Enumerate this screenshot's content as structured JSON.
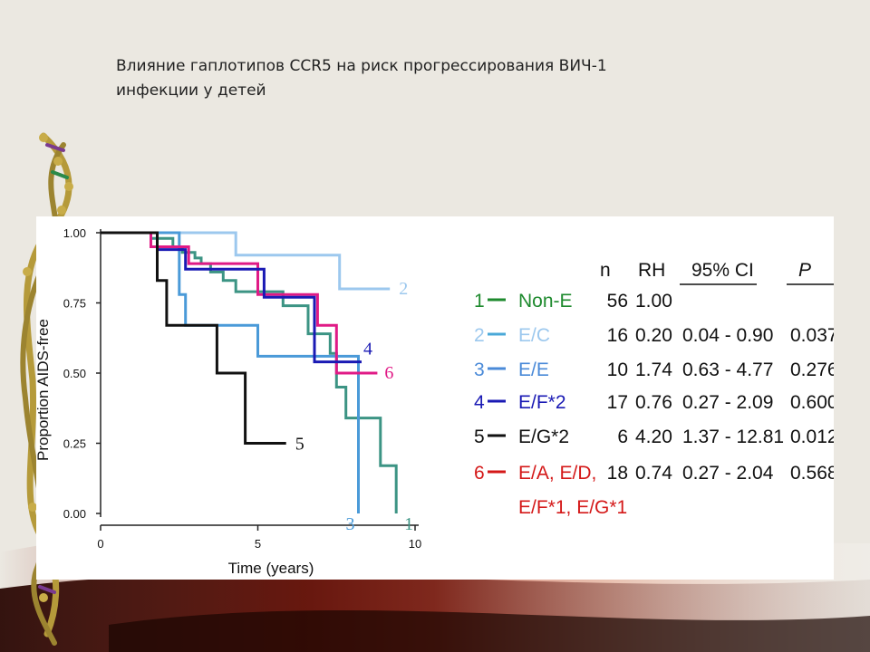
{
  "slide": {
    "title_line1": "Влияние гаплотипов CCR5 на риск прогрессирования ВИЧ-1",
    "title_line2": "инфекции у детей"
  },
  "colors": {
    "background": "#ebe8e1",
    "panel": "#ffffff",
    "series_1": "#3c9484",
    "series_2": "#9cc8ee",
    "series_3": "#4a9ad8",
    "series_4": "#1a1ab4",
    "series_5": "#111111",
    "series_6": "#e01a86",
    "green_label": "#1e8a2e",
    "red_label": "#d41818"
  },
  "chart_data": {
    "type": "line",
    "subtype": "kaplan-meier step",
    "title": "",
    "xlabel": "Time (years)",
    "ylabel": "Proportion AIDS-free",
    "xlim": [
      0,
      10
    ],
    "ylim": [
      0,
      1
    ],
    "x_ticks": [
      "0",
      "5",
      "10"
    ],
    "y_ticks": [
      "0.00",
      "0.25",
      "0.50",
      "0.75",
      "1.00"
    ],
    "grid": false,
    "series": [
      {
        "name": "1",
        "color": "#3c9484",
        "steps": [
          [
            0,
            1.0
          ],
          [
            1.6,
            1.0
          ],
          [
            1.6,
            0.98
          ],
          [
            2.3,
            0.98
          ],
          [
            2.3,
            0.95
          ],
          [
            2.6,
            0.95
          ],
          [
            2.6,
            0.93
          ],
          [
            3.0,
            0.93
          ],
          [
            3.0,
            0.91
          ],
          [
            3.2,
            0.91
          ],
          [
            3.2,
            0.89
          ],
          [
            3.5,
            0.89
          ],
          [
            3.5,
            0.86
          ],
          [
            3.9,
            0.86
          ],
          [
            3.9,
            0.83
          ],
          [
            4.3,
            0.83
          ],
          [
            4.3,
            0.8
          ],
          [
            4.3,
            0.79
          ],
          [
            5.8,
            0.79
          ],
          [
            5.8,
            0.74
          ],
          [
            6.6,
            0.74
          ],
          [
            6.6,
            0.64
          ],
          [
            7.3,
            0.64
          ],
          [
            7.3,
            0.57
          ],
          [
            7.5,
            0.57
          ],
          [
            7.5,
            0.45
          ],
          [
            7.8,
            0.45
          ],
          [
            7.8,
            0.34
          ],
          [
            8.9,
            0.34
          ],
          [
            8.9,
            0.17
          ],
          [
            9.4,
            0.17
          ],
          [
            9.4,
            0.0
          ]
        ],
        "end_label": "1"
      },
      {
        "name": "2",
        "color": "#9cc8ee",
        "steps": [
          [
            0,
            1.0
          ],
          [
            4.3,
            1.0
          ],
          [
            4.3,
            0.92
          ],
          [
            7.6,
            0.92
          ],
          [
            7.6,
            0.8
          ],
          [
            9.2,
            0.8
          ]
        ],
        "end_label": "2"
      },
      {
        "name": "3",
        "color": "#4a9ad8",
        "steps": [
          [
            0,
            1.0
          ],
          [
            2.5,
            1.0
          ],
          [
            2.5,
            0.78
          ],
          [
            2.7,
            0.78
          ],
          [
            2.7,
            0.67
          ],
          [
            3.0,
            0.67
          ],
          [
            3.0,
            0.67
          ],
          [
            5.0,
            0.67
          ],
          [
            5.0,
            0.56
          ],
          [
            7.6,
            0.56
          ],
          [
            7.6,
            0.56
          ],
          [
            8.2,
            0.56
          ],
          [
            8.2,
            0.0
          ]
        ],
        "end_label": "3"
      },
      {
        "name": "4",
        "color": "#1a1ab4",
        "steps": [
          [
            0,
            1.0
          ],
          [
            1.8,
            1.0
          ],
          [
            1.8,
            0.94
          ],
          [
            2.7,
            0.94
          ],
          [
            2.7,
            0.87
          ],
          [
            5.2,
            0.87
          ],
          [
            5.2,
            0.77
          ],
          [
            6.8,
            0.77
          ],
          [
            6.8,
            0.54
          ],
          [
            8.3,
            0.54
          ]
        ],
        "end_label": "4"
      },
      {
        "name": "5",
        "color": "#111111",
        "steps": [
          [
            0,
            1.0
          ],
          [
            1.8,
            1.0
          ],
          [
            1.8,
            0.83
          ],
          [
            2.1,
            0.83
          ],
          [
            2.1,
            0.67
          ],
          [
            3.7,
            0.67
          ],
          [
            3.7,
            0.5
          ],
          [
            4.6,
            0.5
          ],
          [
            4.6,
            0.25
          ],
          [
            5.9,
            0.25
          ]
        ],
        "end_label": "5"
      },
      {
        "name": "6",
        "color": "#e01a86",
        "steps": [
          [
            0,
            1.0
          ],
          [
            1.6,
            1.0
          ],
          [
            1.6,
            0.95
          ],
          [
            2.8,
            0.95
          ],
          [
            2.8,
            0.89
          ],
          [
            5.0,
            0.89
          ],
          [
            5.0,
            0.78
          ],
          [
            6.9,
            0.78
          ],
          [
            6.9,
            0.67
          ],
          [
            7.5,
            0.67
          ],
          [
            7.5,
            0.5
          ],
          [
            8.8,
            0.5
          ]
        ],
        "end_label": "6"
      }
    ]
  },
  "table": {
    "headers": {
      "n": "n",
      "rh": "RH",
      "ci": "95% CI",
      "p": "P"
    },
    "rows": [
      {
        "num": "1",
        "group": "Non-E",
        "n": "56",
        "rh": "1.00",
        "ci": "",
        "p": "",
        "color": "#1e8a2e",
        "line_color": "#1e8a2e"
      },
      {
        "num": "2",
        "group": "E/C",
        "n": "16",
        "rh": "0.20",
        "ci": "0.04 - 0.90",
        "p": "0.037",
        "color": "#9cc8ee",
        "line_color": "#4aa8d8"
      },
      {
        "num": "3",
        "group": "E/E",
        "n": "10",
        "rh": "1.74",
        "ci": "0.63 - 4.77",
        "p": "0.276",
        "color": "#4a8ad8",
        "line_color": "#4a8ad8"
      },
      {
        "num": "4",
        "group": "E/F*2",
        "n": "17",
        "rh": "0.76",
        "ci": "0.27 - 2.09",
        "p": "0.600",
        "color": "#1a1ab4",
        "line_color": "#1a1ab4"
      },
      {
        "num": "5",
        "group": "E/G*2",
        "n": "6",
        "rh": "4.20",
        "ci": "1.37 - 12.81",
        "p": "0.012",
        "color": "#111111",
        "line_color": "#111111"
      },
      {
        "num": "6",
        "group": "E/A, E/D,",
        "group2": "E/F*1, E/G*1",
        "n": "18",
        "rh": "0.74",
        "ci": "0.27 - 2.04",
        "p": "0.568",
        "color": "#d41818",
        "line_color": "#d41818"
      }
    ]
  }
}
